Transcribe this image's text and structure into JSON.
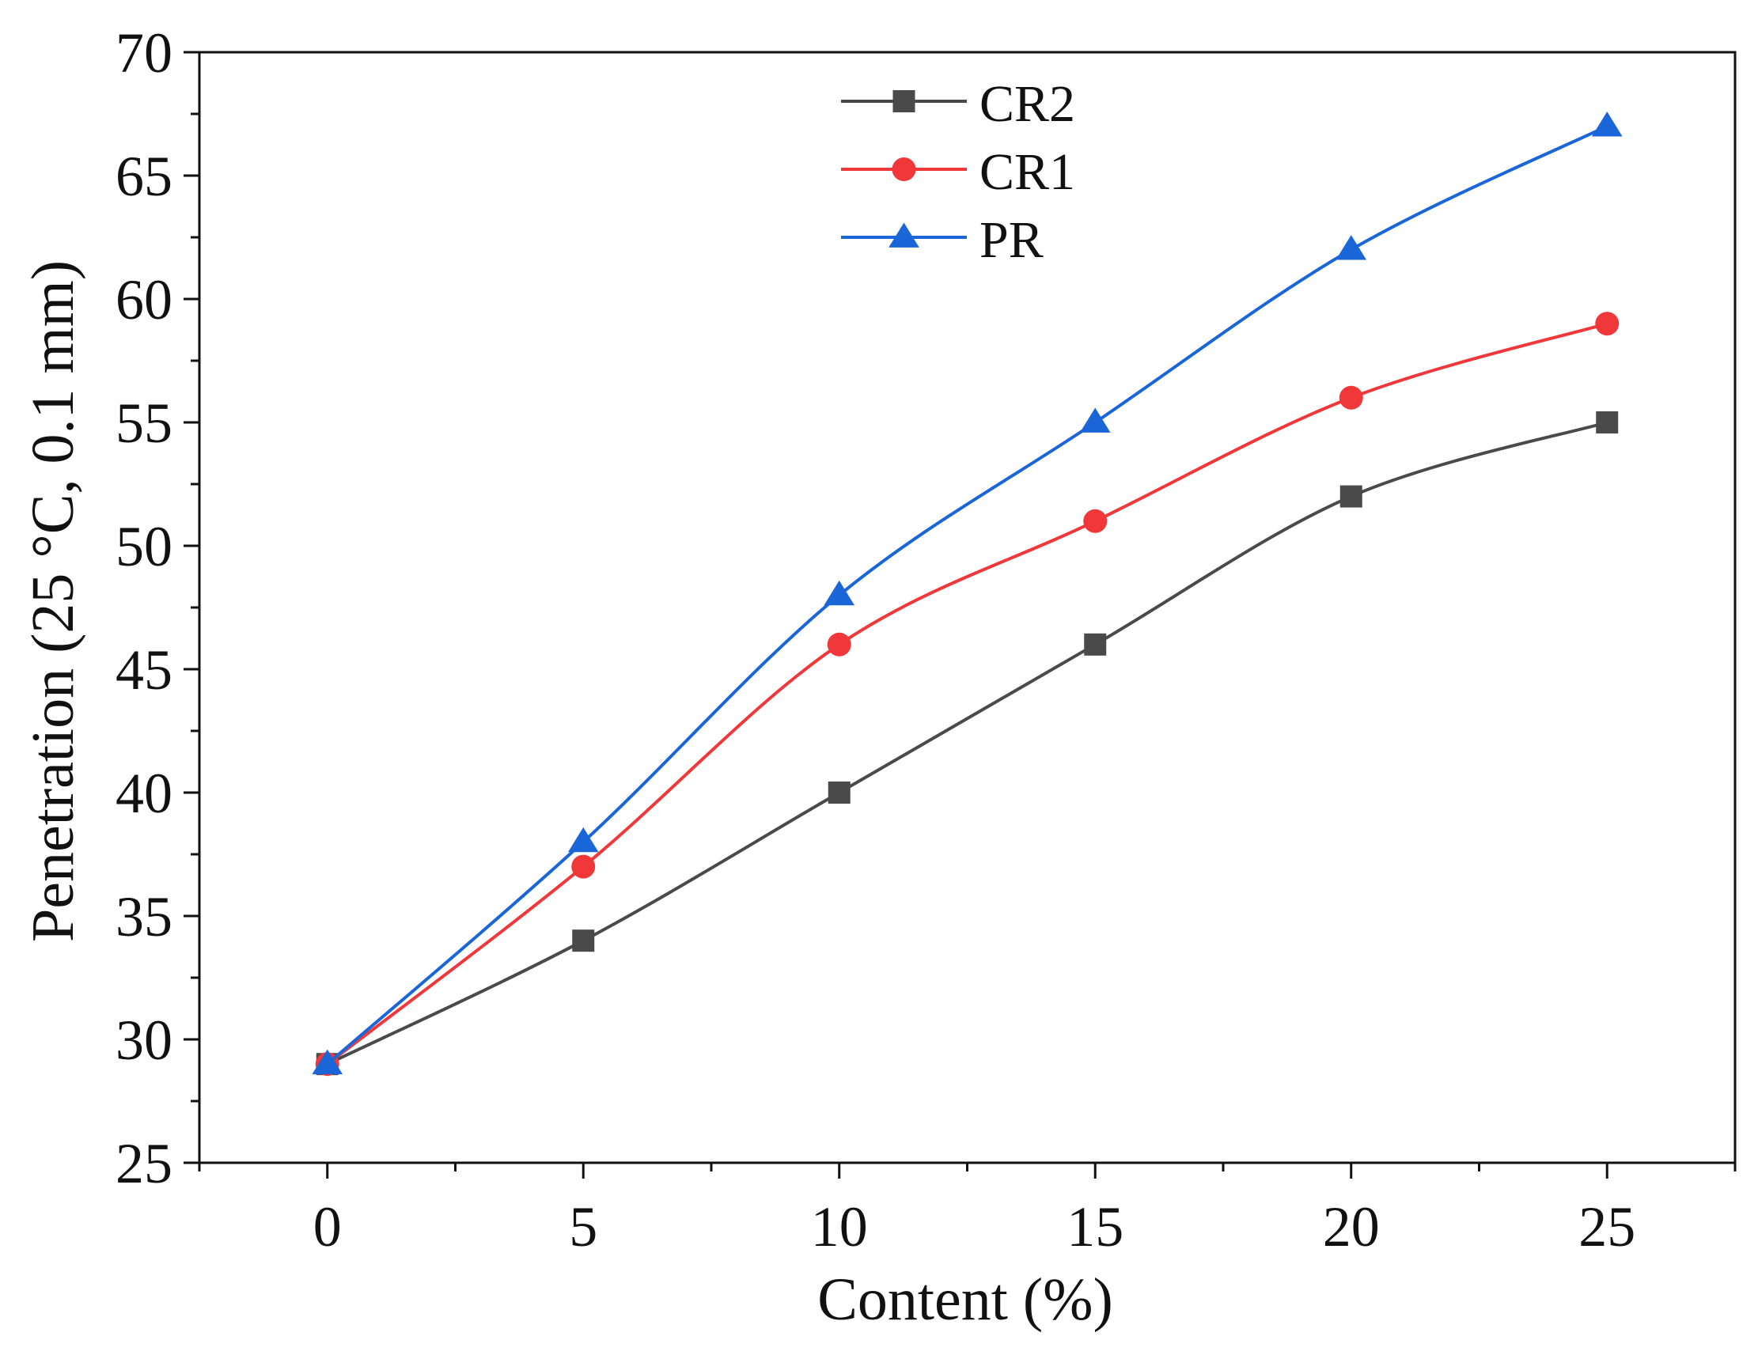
{
  "chart_data": {
    "type": "line",
    "title": "",
    "xlabel": "Content (%)",
    "ylabel": "Penetration (25 °C, 0.1 mm)",
    "xlim": [
      -2.5,
      27.5
    ],
    "ylim": [
      25,
      70
    ],
    "x_ticks": [
      0,
      5,
      10,
      15,
      20,
      25
    ],
    "y_ticks": [
      25,
      30,
      35,
      40,
      45,
      50,
      55,
      60,
      65,
      70
    ],
    "grid": false,
    "legend_position": "top-center",
    "x": [
      0,
      5,
      10,
      15,
      20,
      25
    ],
    "series": [
      {
        "name": "CR2",
        "color": "#4a4a4a",
        "marker": "square",
        "values": [
          29,
          34,
          40,
          46,
          52,
          55
        ]
      },
      {
        "name": "CR1",
        "color": "#f0383b",
        "marker": "circle",
        "values": [
          29,
          37,
          46,
          51,
          56,
          59
        ]
      },
      {
        "name": "PR",
        "color": "#1a66d9",
        "marker": "triangle",
        "values": [
          29,
          38,
          48,
          55,
          62,
          67
        ]
      }
    ]
  }
}
